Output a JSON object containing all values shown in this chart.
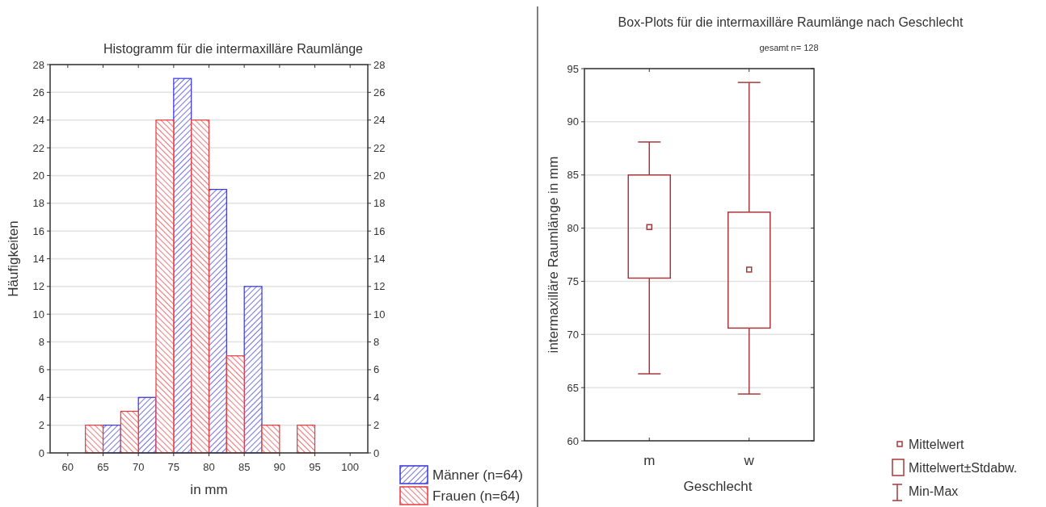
{
  "chart_data": [
    {
      "type": "histogram",
      "title": "Histogramm für die intermaxilläre Raumlänge",
      "xlabel": "in mm",
      "ylabel": "Häufigkeiten",
      "bins": [
        62.5,
        67.5,
        72.5,
        77.5,
        82.5,
        87.5,
        92.5,
        97.5
      ],
      "series": [
        {
          "name": "Männer (n=64)",
          "color": "#3535d8",
          "values": [
            2,
            4,
            27,
            19,
            12,
            0,
            0
          ]
        },
        {
          "name": "Frauen (n=64)",
          "color": "#e8383c",
          "values": [
            2,
            3,
            24,
            24,
            7,
            2,
            2
          ]
        }
      ],
      "xlim": [
        57.5,
        102.5
      ],
      "xticks": [
        60,
        65,
        70,
        75,
        80,
        85,
        90,
        95,
        100
      ],
      "ylim": [
        0,
        28
      ],
      "yticks": [
        0,
        2,
        4,
        6,
        8,
        10,
        12,
        14,
        16,
        18,
        20,
        22,
        24,
        26,
        28
      ],
      "y2lim": [
        0,
        28
      ],
      "y2ticks": [
        0,
        2,
        4,
        6,
        8,
        10,
        12,
        14,
        16,
        18,
        20,
        22,
        24,
        26,
        28
      ],
      "grid": "y",
      "legend": "bottom right"
    },
    {
      "type": "box",
      "title": "Box-Plots für die intermaxilläre Raumlänge nach Geschlecht",
      "subtitle": "gesamt n= 128",
      "xlabel": "Geschlecht",
      "ylabel": "intermaxilläre Raumlänge in mm",
      "categories": [
        "m",
        "w"
      ],
      "series": [
        {
          "color": "#a8383c",
          "boxes": [
            {
              "low": 66.3,
              "q1": 75.3,
              "q3": 85.0,
              "high": 88.1,
              "mean": 80.1
            },
            {
              "low": 64.4,
              "q1": 70.6,
              "q3": 81.5,
              "high": 93.7,
              "mean": 76.1
            }
          ]
        }
      ],
      "ylim": [
        60,
        95
      ],
      "yticks": [
        60,
        65,
        70,
        75,
        80,
        85,
        90,
        95
      ],
      "grid": "y",
      "annotations": [
        "Mittelwert",
        "Mittelwert±Stdabw.",
        "Min-Max"
      ]
    }
  ]
}
